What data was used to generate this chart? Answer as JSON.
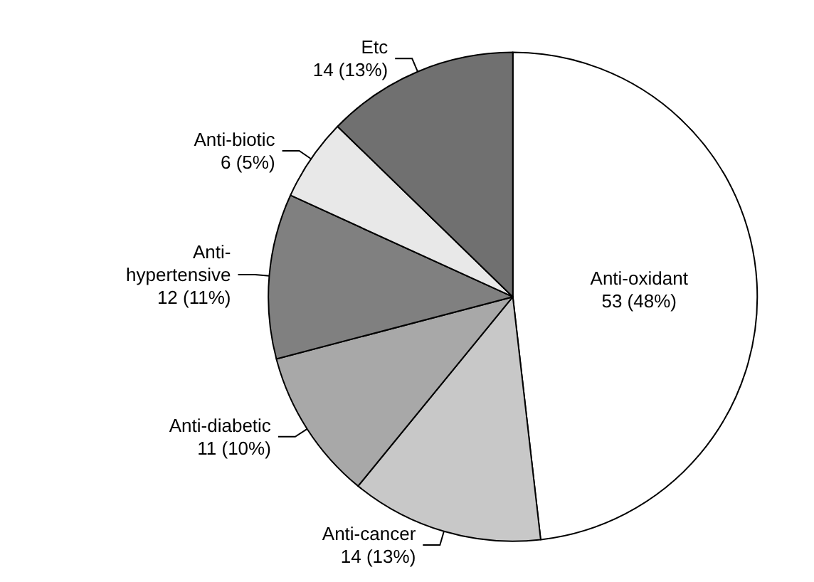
{
  "chart_data": {
    "type": "pie",
    "categories": [
      "Anti-oxidant",
      "Anti-cancer",
      "Anti-diabetic",
      "Anti-\nhypertensive",
      "Anti-biotic",
      "Etc"
    ],
    "values": [
      53,
      14,
      11,
      12,
      6,
      14
    ],
    "value_labels": [
      "53 (48%)",
      "14 (13%)",
      "11 (10%)",
      "12 (11%)",
      "6 (5%)",
      "14 (13%)"
    ],
    "colors": [
      "#ffffff",
      "#c8c8c8",
      "#a8a8a8",
      "#808080",
      "#e8e8e8",
      "#707070"
    ]
  }
}
